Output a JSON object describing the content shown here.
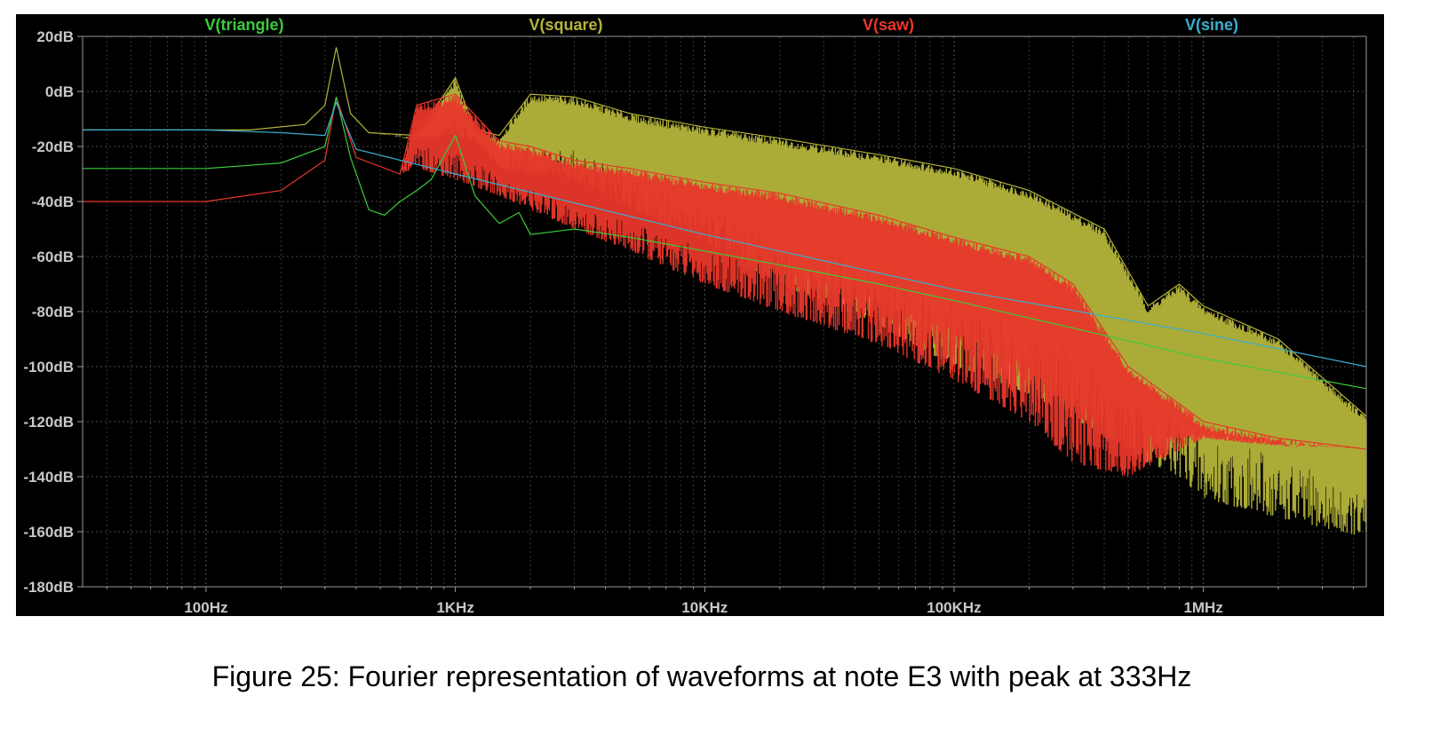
{
  "caption": "Figure 25: Fourier representation of waveforms at note E3 with peak at 333Hz",
  "chart_data": {
    "type": "line",
    "xscale": "log",
    "xlim": [
      32,
      4500000
    ],
    "ylim": [
      -180,
      20
    ],
    "grid": true,
    "background": "#000000",
    "x_ticks": [
      {
        "value": 100,
        "label": "100Hz"
      },
      {
        "value": 1000,
        "label": "1KHz"
      },
      {
        "value": 10000,
        "label": "10KHz"
      },
      {
        "value": 100000,
        "label": "100KHz"
      },
      {
        "value": 1000000,
        "label": "1MHz"
      }
    ],
    "y_ticks": [
      {
        "value": 20,
        "label": "20dB"
      },
      {
        "value": 0,
        "label": "0dB"
      },
      {
        "value": -20,
        "label": "-20dB"
      },
      {
        "value": -40,
        "label": "-40dB"
      },
      {
        "value": -60,
        "label": "-60dB"
      },
      {
        "value": -80,
        "label": "-80dB"
      },
      {
        "value": -100,
        "label": "-100dB"
      },
      {
        "value": -120,
        "label": "-120dB"
      },
      {
        "value": -140,
        "label": "-140dB"
      },
      {
        "value": -160,
        "label": "-160dB"
      },
      {
        "value": -180,
        "label": "-180dB"
      }
    ],
    "series": [
      {
        "name": "V(square)",
        "color": "#b4b43a",
        "fill": true,
        "x": [
          32,
          150,
          250,
          300,
          333,
          380,
          450,
          700,
          1000,
          1200,
          1500,
          2000,
          3000,
          5000,
          10000,
          20000,
          50000,
          100000,
          200000,
          400000,
          600000,
          800000,
          1000000,
          2000000,
          4500000
        ],
        "y_upper": [
          -14,
          -14,
          -12,
          -5,
          16,
          -8,
          -15,
          -16,
          5,
          -14,
          -16,
          -1,
          -2,
          -8,
          -13,
          -17,
          -23,
          -28,
          -36,
          -50,
          -78,
          -70,
          -78,
          -90,
          -118
        ],
        "y_lower": [
          -14,
          -14,
          -12,
          -5,
          16,
          -8,
          -15,
          -18,
          -16,
          -18,
          -28,
          -30,
          -32,
          -42,
          -55,
          -70,
          -85,
          -100,
          -110,
          -125,
          -135,
          -140,
          -148,
          -155,
          -162
        ]
      },
      {
        "name": "V(saw)",
        "color": "#e8372a",
        "fill": true,
        "x": [
          32,
          100,
          200,
          300,
          333,
          400,
          600,
          700,
          1000,
          1500,
          2000,
          3000,
          5000,
          10000,
          20000,
          50000,
          100000,
          200000,
          300000,
          500000,
          1000000,
          2000000,
          4500000
        ],
        "y_upper": [
          -40,
          -40,
          -36,
          -25,
          -2,
          -24,
          -30,
          -5,
          -1,
          -18,
          -20,
          -25,
          -28,
          -33,
          -37,
          -45,
          -53,
          -60,
          -70,
          -100,
          -120,
          -126,
          -130
        ],
        "y_lower": [
          -40,
          -40,
          -36,
          -25,
          -2,
          -24,
          -30,
          -28,
          -32,
          -38,
          -43,
          -50,
          -58,
          -70,
          -80,
          -92,
          -105,
          -120,
          -135,
          -140,
          -126,
          -129,
          -130
        ]
      },
      {
        "name": "V(triangle)",
        "color": "#3ccc3c",
        "fill": false,
        "x": [
          32,
          100,
          200,
          300,
          333,
          380,
          450,
          520,
          600,
          700,
          800,
          1000,
          1200,
          1500,
          1800,
          2000,
          3000,
          5000,
          10000,
          20000,
          50000,
          100000,
          300000,
          1000000,
          4500000
        ],
        "y": [
          -28,
          -28,
          -26,
          -20,
          -2,
          -24,
          -43,
          -45,
          -40,
          -36,
          -32,
          -16,
          -38,
          -48,
          -44,
          -52,
          -50,
          -53,
          -58,
          -63,
          -70,
          -76,
          -86,
          -97,
          -108
        ]
      },
      {
        "name": "V(sine)",
        "color": "#3aaed0",
        "fill": false,
        "x": [
          32,
          100,
          200,
          300,
          333,
          400,
          1000,
          10000,
          100000,
          1000000,
          4500000
        ],
        "y": [
          -14,
          -14,
          -15,
          -16,
          -4,
          -21,
          -30,
          -52,
          -72,
          -88,
          -100
        ]
      }
    ]
  }
}
